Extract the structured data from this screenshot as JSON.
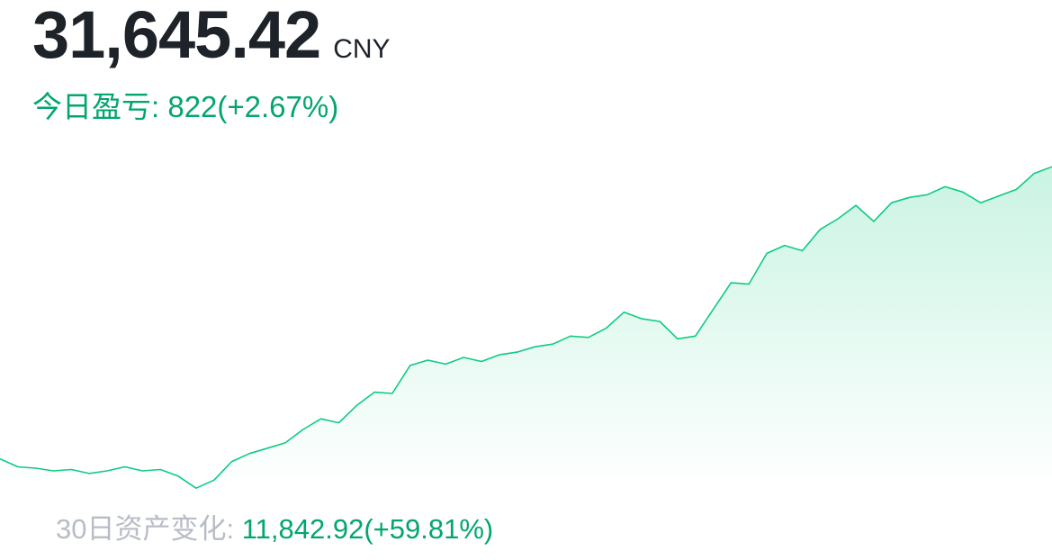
{
  "balance": {
    "value": "31,645.42",
    "currency": "CNY"
  },
  "today_pnl": {
    "text": "今日盈亏: 822(+2.67%)"
  },
  "change_30d": {
    "label": "30日资产变化: ",
    "value": "11,842.92(+59.81%)"
  },
  "colors": {
    "line": "#0ecb81",
    "fill_top": "#0ecb81",
    "text_primary": "#1e2329",
    "positive": "#03a66d",
    "label_gray": "#b7bdc6"
  },
  "chart_data": {
    "type": "area",
    "title": "",
    "xlabel": "",
    "ylabel": "",
    "grid": false,
    "legend": "none",
    "ylim": [
      19000,
      32500
    ],
    "x": [
      1,
      2,
      3,
      4,
      5,
      6,
      7,
      8,
      9,
      10,
      11,
      12,
      13,
      14,
      15,
      16,
      17,
      18,
      19,
      20,
      21,
      22,
      23,
      24,
      25,
      26,
      27,
      28,
      29,
      30,
      31,
      32,
      33,
      34,
      35,
      36,
      37,
      38,
      39,
      40,
      41,
      42,
      43,
      44,
      45,
      46,
      47,
      48,
      49,
      50,
      51,
      52,
      53,
      54,
      55,
      56,
      57,
      58,
      59,
      60
    ],
    "series": [
      {
        "values": [
          20700,
          20400,
          20350,
          20250,
          20300,
          20150,
          20250,
          20400,
          20250,
          20300,
          20050,
          19600,
          19900,
          20600,
          20900,
          21100,
          21300,
          21800,
          22200,
          22050,
          22700,
          23200,
          23150,
          24200,
          24400,
          24250,
          24500,
          24350,
          24600,
          24700,
          24900,
          25000,
          25300,
          25250,
          25600,
          26200,
          25950,
          25850,
          25200,
          25300,
          26300,
          27300,
          27250,
          28400,
          28700,
          28500,
          29300,
          29700,
          30200,
          29600,
          30300,
          30500,
          30600,
          30900,
          30700,
          30300,
          30550,
          30800,
          31400,
          31650
        ]
      }
    ]
  }
}
